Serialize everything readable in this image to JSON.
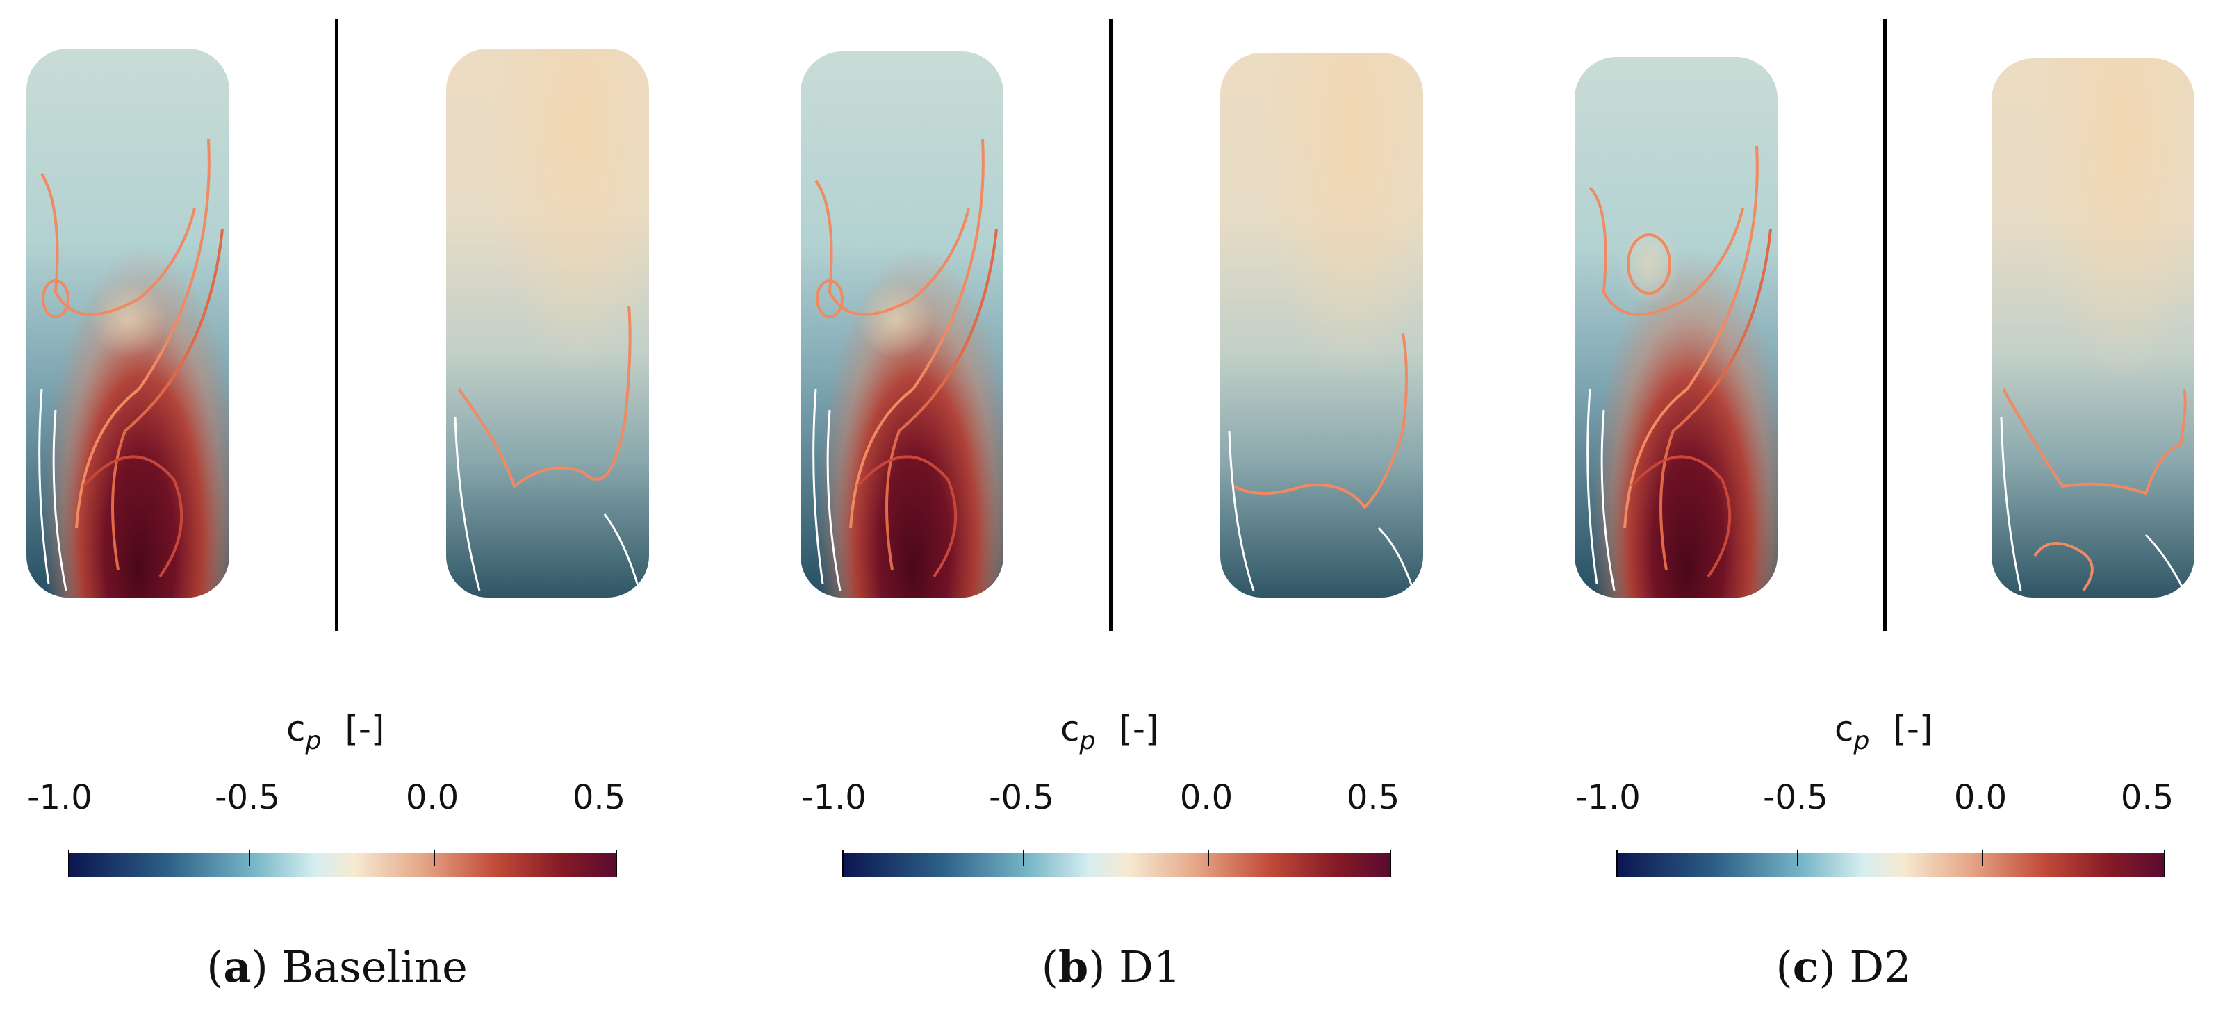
{
  "colors": {
    "neg_end": "#0b1550",
    "neg_mid": "#2c6c8a",
    "light_blue": "#bfe3e6",
    "neutral": "#f2e5c9",
    "pos_mid": "#d56a4d",
    "pos_end": "#5a0a24",
    "contour": "#ef8a62"
  },
  "colorbar": {
    "title_main": "c",
    "title_sub": "p",
    "title_unit": "[-]",
    "ticks": [
      "-1.0",
      "-0.5",
      "0.0",
      "0.5"
    ],
    "tick_values": [
      -1.0,
      -0.5,
      0.0,
      0.5
    ],
    "range": [
      -1.0,
      0.5
    ]
  },
  "panels": [
    {
      "letter": "a",
      "name": "Baseline"
    },
    {
      "letter": "b",
      "name": "D1"
    },
    {
      "letter": "c",
      "name": "D2"
    }
  ]
}
